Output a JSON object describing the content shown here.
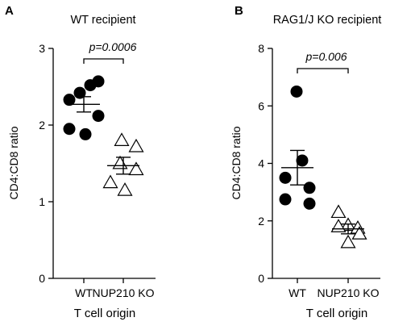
{
  "chart_data": [
    {
      "type": "scatter",
      "panel": "A",
      "title": "WT recipient",
      "ylabel": "CD4:CD8 ratio",
      "xlabel": "T cell origin",
      "ylim": [
        0,
        3
      ],
      "yticks": [
        "0",
        "1",
        "2",
        "3"
      ],
      "categories": [
        "WT",
        "NUP210 KO"
      ],
      "series": [
        {
          "category": "WT",
          "marker": "filled-circle",
          "values": [
            2.42,
            2.52,
            2.57,
            2.33,
            2.12,
            1.95,
            1.88
          ],
          "mean": 2.27,
          "error": 0.1
        },
        {
          "category": "NUP210 KO",
          "marker": "open-triangle",
          "values": [
            1.8,
            1.72,
            1.5,
            1.42,
            1.25,
            1.15
          ],
          "mean": 1.47,
          "error": 0.11
        }
      ],
      "annotation": {
        "text": "p=0.0006",
        "between": [
          "WT",
          "NUP210 KO"
        ]
      }
    },
    {
      "type": "scatter",
      "panel": "B",
      "title": "RAG1/J KO recipient",
      "ylabel": "CD4:CD8 ratio",
      "xlabel": "T cell origin",
      "ylim": [
        0,
        8
      ],
      "yticks": [
        "0",
        "2",
        "4",
        "6",
        "8"
      ],
      "categories": [
        "WT",
        "NUP210 KO"
      ],
      "series": [
        {
          "category": "WT",
          "marker": "filled-circle",
          "values": [
            6.5,
            4.1,
            3.5,
            3.15,
            2.75,
            2.6
          ],
          "mean": 3.85,
          "error": 0.6
        },
        {
          "category": "NUP210 KO",
          "marker": "open-triangle",
          "values": [
            2.3,
            1.85,
            1.8,
            1.75,
            1.55,
            1.25
          ],
          "mean": 1.72,
          "error": 0.17
        }
      ],
      "annotation": {
        "text": "p=0.006",
        "between": [
          "WT",
          "NUP210 KO"
        ]
      }
    }
  ]
}
